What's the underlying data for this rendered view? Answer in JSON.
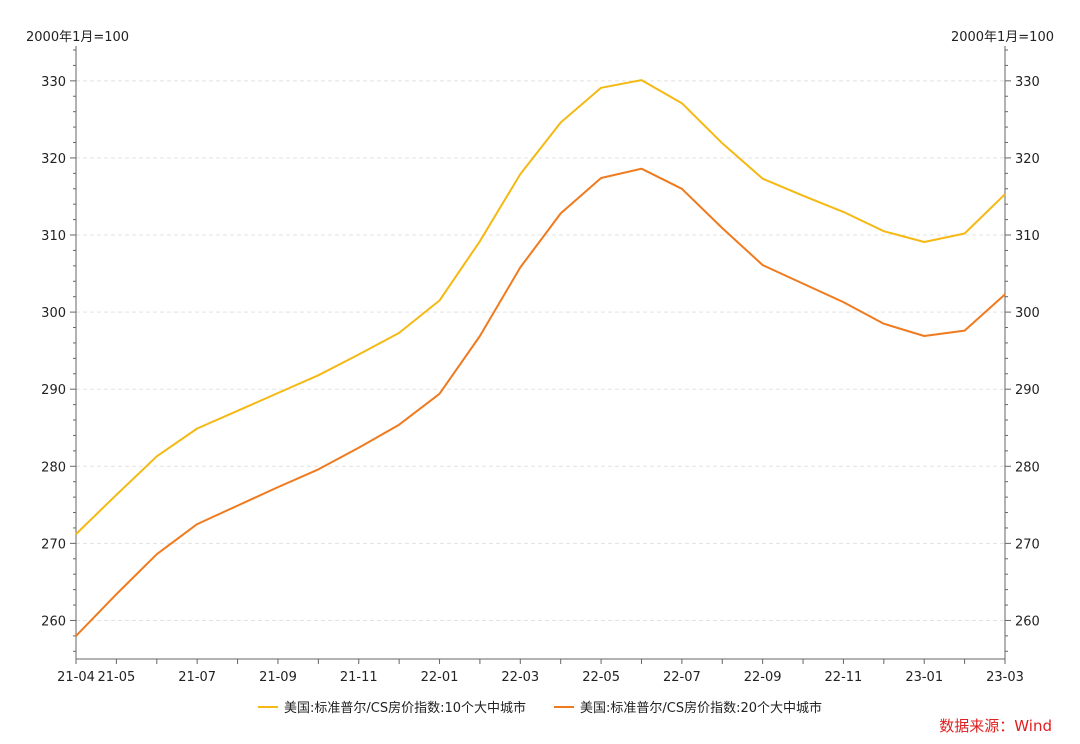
{
  "chart_data": {
    "type": "line",
    "ylabel_left": "2000年1月=100",
    "ylabel_right": "2000年1月=100",
    "ylim": [
      255,
      334
    ],
    "y_ticks": [
      260,
      270,
      280,
      290,
      300,
      310,
      320,
      330
    ],
    "x": [
      "21-04",
      "21-05",
      "21-06",
      "21-07",
      "21-08",
      "21-09",
      "21-10",
      "21-11",
      "21-12",
      "22-01",
      "22-02",
      "22-03",
      "22-04",
      "22-05",
      "22-06",
      "22-07",
      "22-08",
      "22-09",
      "22-10",
      "22-11",
      "22-12",
      "23-01",
      "23-02",
      "23-03"
    ],
    "x_tick_labels": [
      "21-04",
      "21-05",
      "21-07",
      "21-09",
      "21-11",
      "22-01",
      "22-03",
      "22-05",
      "22-07",
      "22-09",
      "22-11",
      "23-01",
      "23-03"
    ],
    "series": [
      {
        "name": "美国:标准普尔/CS房价指数:10个大中城市",
        "color": "#f5b914",
        "values": [
          271.2,
          276.3,
          281.3,
          284.9,
          287.2,
          289.5,
          291.8,
          294.5,
          297.3,
          301.5,
          309.2,
          317.9,
          324.6,
          329.1,
          330.1,
          327.1,
          321.9,
          317.3,
          315.1,
          313.0,
          310.5,
          309.1,
          310.2,
          315.3
        ]
      },
      {
        "name": "美国:标准普尔/CS房价指数:20个大中城市",
        "color": "#f07a1e",
        "values": [
          258.0,
          263.4,
          268.6,
          272.5,
          274.9,
          277.3,
          279.6,
          282.4,
          285.4,
          289.4,
          296.9,
          305.8,
          312.8,
          317.4,
          318.6,
          316.0,
          310.9,
          306.1,
          303.7,
          301.3,
          298.5,
          296.9,
          297.6,
          302.3
        ]
      }
    ],
    "grid": true,
    "legend_position": "bottom"
  },
  "source_note": "数据来源：Wind"
}
